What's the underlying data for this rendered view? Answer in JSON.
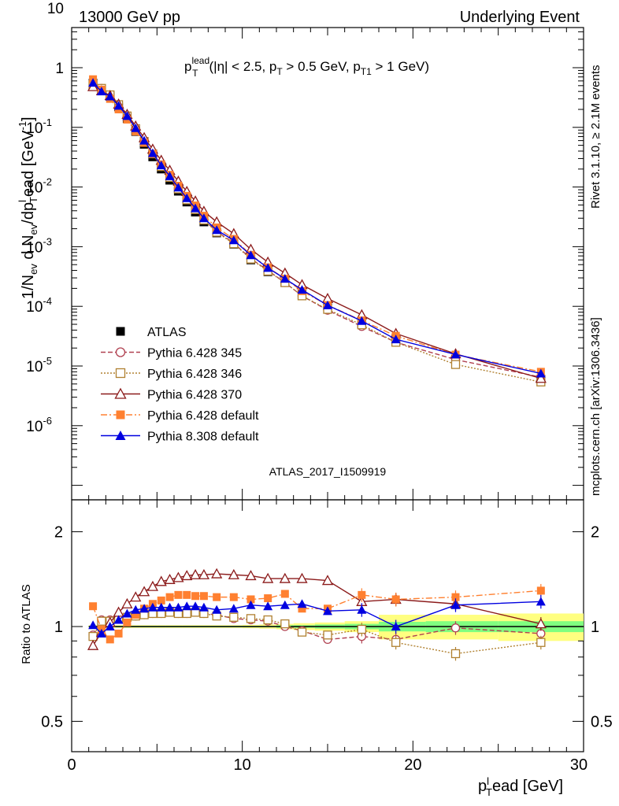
{
  "header": {
    "left": "13000 GeV pp",
    "right": "Underlying Event"
  },
  "annotation": {
    "main": "p",
    "sup": "lead",
    "sub": "T",
    "rest": "(|η| < 2.5, p",
    "rest_sub": "T",
    "rest2": " > 0.5 GeV, p",
    "rest2_sub": "T1",
    "rest3": " > 1 GeV)"
  },
  "analysis_id": "ATLAS_2017_I1509919",
  "side_labels": {
    "rivet": "Rivet 3.1.10, ≥ 2.1M events",
    "mcplots": "mcplots.cern.ch [arXiv:1306.3436]"
  },
  "y_label_main": "1/N",
  "y_label_main_parts": [
    "1/N",
    "ev",
    " d N",
    "ev",
    "/dp",
    "l",
    "T",
    "ead [GeV",
    "-1",
    "]"
  ],
  "y_label_ratio": "Ratio to ATLAS",
  "x_label": "p",
  "x_label_parts": [
    "p",
    "l",
    "T",
    "ead [GeV]"
  ],
  "colors": {
    "atlas": "#000000",
    "p345": "#b04050",
    "p346": "#b08030",
    "p370": "#8b1a1a",
    "p6def": "#ff8030",
    "p8def": "#0000e0",
    "band_yellow": "#ffff80",
    "band_green": "#80ff80"
  },
  "chart_data": [
    {
      "type": "scatter",
      "panel": "main",
      "ylog": true,
      "xlim": [
        0,
        30
      ],
      "ylim": [
        5e-07,
        50
      ],
      "ytick_labels": [
        "10",
        "1",
        "10^-1",
        "10^-2",
        "10^-3",
        "10^-4",
        "10^-5",
        "10^-6"
      ],
      "x": [
        1.25,
        1.75,
        2.25,
        2.75,
        3.25,
        3.75,
        4.25,
        4.75,
        5.25,
        5.75,
        6.25,
        6.75,
        7.25,
        7.75,
        8.5,
        9.5,
        10.5,
        11.5,
        12.5,
        13.5,
        15.0,
        17.0,
        19.0,
        22.5,
        27.5
      ],
      "legend": [
        "ATLAS",
        "Pythia 6.428 345",
        "Pythia 6.428 346",
        "Pythia 6.428 370",
        "Pythia 6.428 default",
        "Pythia 8.308 default"
      ],
      "series": [
        {
          "name": "ATLAS",
          "values": [
            0.55,
            0.43,
            0.33,
            0.22,
            0.14,
            0.085,
            0.052,
            0.032,
            0.02,
            0.013,
            0.0085,
            0.0056,
            0.0038,
            0.0026,
            0.0017,
            0.0011,
            0.0006,
            0.00038,
            0.00025,
            0.00016,
            9.5e-05,
            5e-05,
            2.8e-05,
            1.3e-05,
            6e-06
          ]
        },
        {
          "name": "Pythia 6.428 345",
          "values": [
            0.52,
            0.45,
            0.35,
            0.24,
            0.155,
            0.095,
            0.058,
            0.036,
            0.022,
            0.0145,
            0.0093,
            0.0061,
            0.0042,
            0.0028,
            0.0018,
            0.00115,
            0.00063,
            0.0004,
            0.00025,
            0.00015,
            8.6e-05,
            4.6e-05,
            2.5e-05,
            1.28e-05,
            6.5e-06
          ]
        },
        {
          "name": "Pythia 6.428 346",
          "values": [
            0.52,
            0.45,
            0.35,
            0.24,
            0.155,
            0.095,
            0.058,
            0.036,
            0.022,
            0.0145,
            0.0093,
            0.0061,
            0.0042,
            0.0028,
            0.00175,
            0.00112,
            0.00062,
            0.00039,
            0.00025,
            0.00015,
            8.9e-05,
            4.9e-05,
            2.5e-05,
            1.06e-05,
            5.4e-06
          ]
        },
        {
          "name": "Pythia 6.428 370",
          "values": [
            0.48,
            0.41,
            0.34,
            0.245,
            0.165,
            0.105,
            0.067,
            0.043,
            0.028,
            0.019,
            0.0125,
            0.0084,
            0.0058,
            0.0039,
            0.0026,
            0.00165,
            0.0009,
            0.00055,
            0.00036,
            0.00023,
            0.000135,
            7.2e-05,
            3.5e-05,
            1.6e-05,
            6.2e-06
          ]
        },
        {
          "name": "Pythia 6.428 default",
          "values": [
            0.64,
            0.43,
            0.3,
            0.2,
            0.135,
            0.085,
            0.055,
            0.036,
            0.024,
            0.016,
            0.0105,
            0.0071,
            0.0049,
            0.0033,
            0.0021,
            0.00135,
            0.00073,
            0.00045,
            0.00029,
            0.00018,
            0.000105,
            5.8e-05,
            3.2e-05,
            1.55e-05,
            8e-06
          ]
        },
        {
          "name": "Pythia 8.308 default",
          "values": [
            0.56,
            0.4,
            0.33,
            0.23,
            0.155,
            0.097,
            0.06,
            0.037,
            0.023,
            0.0152,
            0.0098,
            0.0065,
            0.0044,
            0.003,
            0.0019,
            0.00128,
            0.00072,
            0.00044,
            0.00029,
            0.00019,
            0.000104,
            5.7e-05,
            2.8e-05,
            1.56e-05,
            7.5e-06
          ]
        }
      ]
    },
    {
      "type": "scatter",
      "panel": "ratio",
      "xlim": [
        0,
        30
      ],
      "ylim": [
        0.4,
        2.3
      ],
      "xticks": [
        0,
        10,
        20,
        30
      ],
      "yticks": [
        0.5,
        1,
        2
      ],
      "x": [
        1.25,
        1.75,
        2.25,
        2.75,
        3.25,
        3.75,
        4.25,
        4.75,
        5.25,
        5.75,
        6.25,
        6.75,
        7.25,
        7.75,
        8.5,
        9.5,
        10.5,
        11.5,
        12.5,
        13.5,
        15.0,
        17.0,
        19.0,
        22.5,
        27.5
      ],
      "bands": {
        "green_half_width": [
          0.005,
          0.005,
          0.005,
          0.005,
          0.005,
          0.005,
          0.005,
          0.005,
          0.005,
          0.005,
          0.005,
          0.005,
          0.005,
          0.005,
          0.005,
          0.005,
          0.005,
          0.005,
          0.01,
          0.01,
          0.015,
          0.02,
          0.035,
          0.04,
          0.04
        ],
        "yellow_half_width": [
          0.01,
          0.01,
          0.01,
          0.01,
          0.01,
          0.01,
          0.01,
          0.01,
          0.01,
          0.01,
          0.01,
          0.01,
          0.01,
          0.01,
          0.01,
          0.01,
          0.012,
          0.015,
          0.02,
          0.025,
          0.03,
          0.04,
          0.09,
          0.09,
          0.1
        ]
      },
      "series": [
        {
          "name": "Pythia 6.428 345",
          "values": [
            0.94,
            1.05,
            1.05,
            1.06,
            1.07,
            1.08,
            1.09,
            1.1,
            1.1,
            1.11,
            1.1,
            1.1,
            1.11,
            1.1,
            1.09,
            1.06,
            1.05,
            1.04,
            1.0,
            0.97,
            0.91,
            0.93,
            0.91,
            0.99,
            0.95
          ]
        },
        {
          "name": "Pythia 6.428 346",
          "values": [
            0.93,
            1.04,
            1.04,
            1.06,
            1.07,
            1.08,
            1.09,
            1.1,
            1.1,
            1.11,
            1.1,
            1.1,
            1.11,
            1.1,
            1.08,
            1.07,
            1.06,
            1.05,
            1.02,
            0.96,
            0.94,
            0.98,
            0.89,
            0.82,
            0.89
          ]
        },
        {
          "name": "Pythia 6.428 370",
          "values": [
            0.87,
            0.96,
            1.03,
            1.11,
            1.18,
            1.24,
            1.29,
            1.34,
            1.39,
            1.41,
            1.43,
            1.45,
            1.46,
            1.46,
            1.47,
            1.46,
            1.45,
            1.42,
            1.42,
            1.42,
            1.4,
            1.2,
            1.22,
            1.18,
            1.02
          ]
        },
        {
          "name": "Pythia 6.428 default",
          "values": [
            1.16,
            0.98,
            0.91,
            0.95,
            1.03,
            1.09,
            1.14,
            1.18,
            1.21,
            1.24,
            1.26,
            1.26,
            1.25,
            1.25,
            1.24,
            1.24,
            1.22,
            1.23,
            1.27,
            1.14,
            1.14,
            1.26,
            1.22,
            1.24,
            1.3
          ]
        },
        {
          "name": "Pythia 8.308 default",
          "values": [
            1.01,
            0.95,
            1.0,
            1.05,
            1.1,
            1.13,
            1.14,
            1.15,
            1.15,
            1.15,
            1.15,
            1.16,
            1.16,
            1.15,
            1.13,
            1.14,
            1.17,
            1.16,
            1.17,
            1.18,
            1.12,
            1.13,
            1.0,
            1.17,
            1.2
          ]
        }
      ]
    }
  ]
}
